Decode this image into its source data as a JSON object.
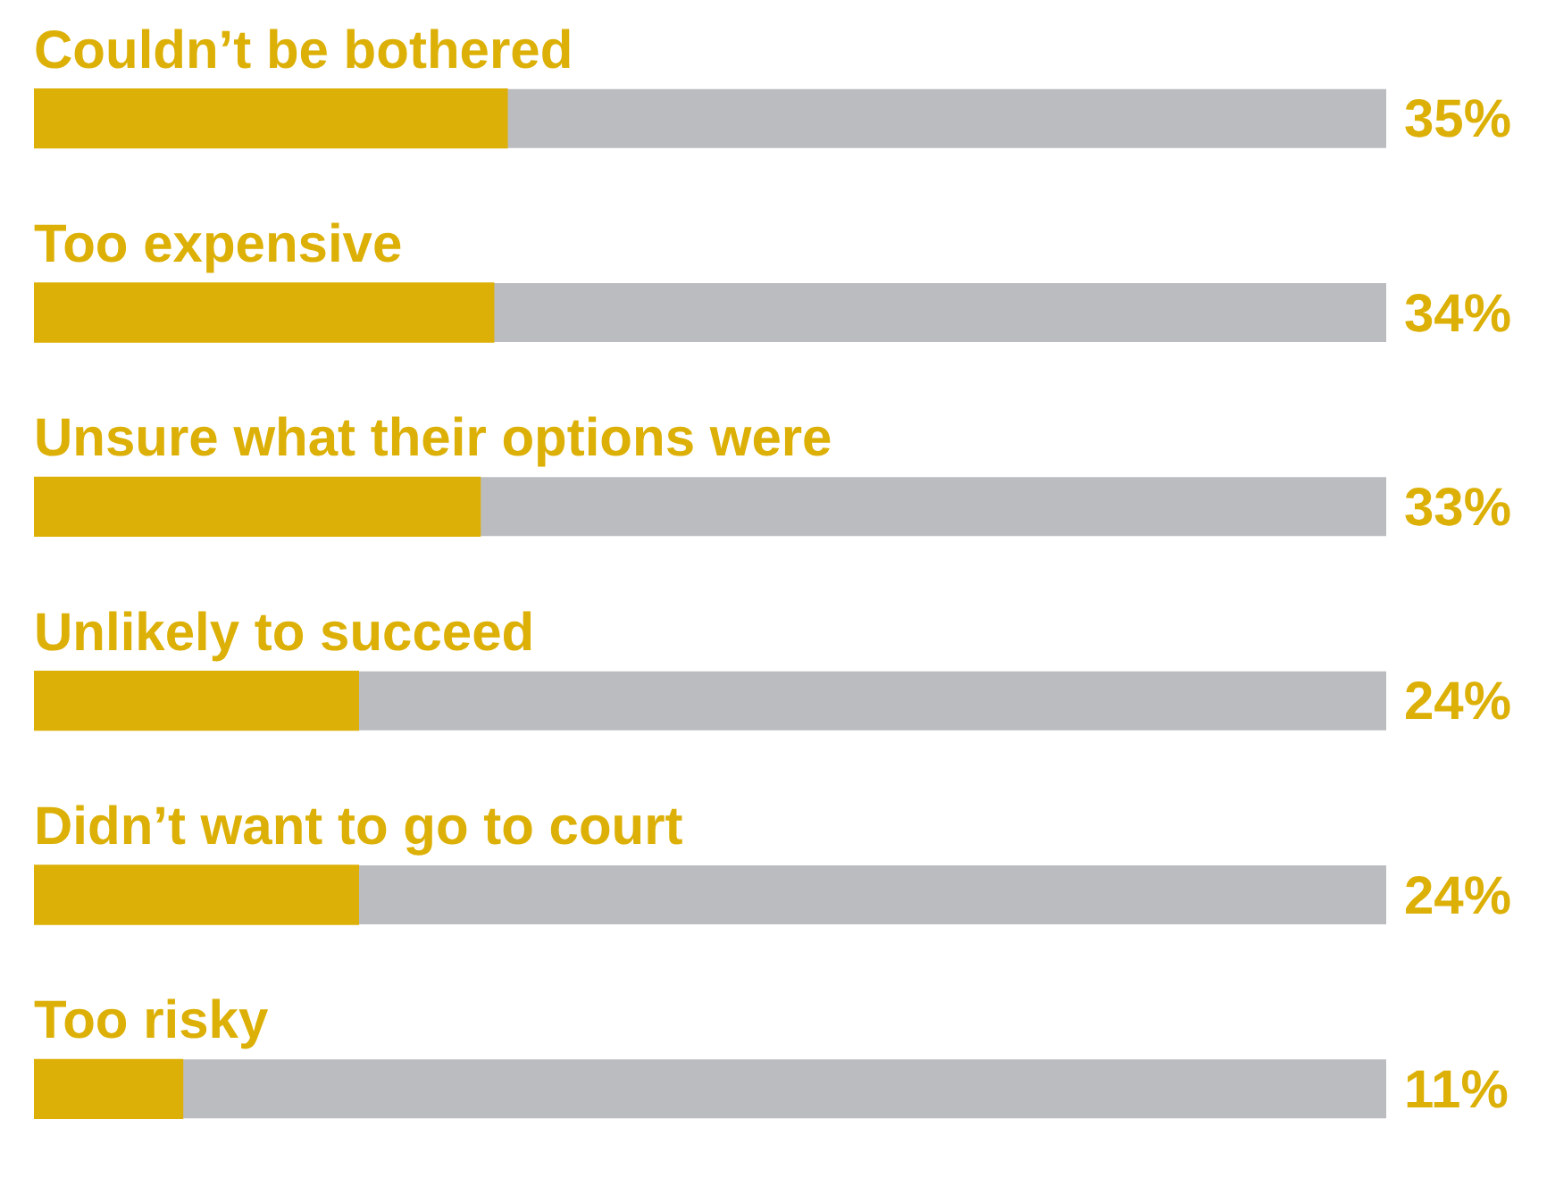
{
  "chart_data": {
    "type": "bar",
    "orientation": "horizontal",
    "categories": [
      "Couldn’t be bothered",
      "Too expensive",
      "Unsure what their options were",
      "Unlikely to succeed",
      "Didn’t want to go to court",
      "Too risky"
    ],
    "values": [
      35,
      34,
      33,
      24,
      24,
      11
    ],
    "value_labels": [
      "35%",
      "34%",
      "33%",
      "24%",
      "24%",
      "11%"
    ],
    "color": "#dcb006",
    "xlim": [
      0,
      100
    ],
    "tick_labels": "y"
  }
}
